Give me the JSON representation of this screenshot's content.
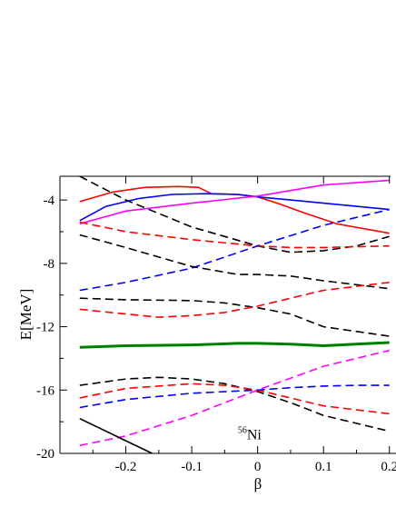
{
  "chart_data": {
    "type": "line",
    "title": "",
    "xlabel": "β",
    "ylabel": "E[MeV]",
    "xlim": [
      -0.3,
      0.21
    ],
    "ylim": [
      -20,
      -2.5
    ],
    "xticks": [
      -0.2,
      -0.1,
      0,
      0.1,
      0.2
    ],
    "xtick_labels": [
      "-0.2",
      "-0.1",
      "0",
      "0.1",
      "0.2"
    ],
    "yticks": [
      -20,
      -16,
      -12,
      -8,
      -4
    ],
    "ytick_labels": [
      "-20",
      "-16",
      "-12",
      "-8",
      "-4"
    ],
    "grid": false,
    "legend": "none",
    "annotation": {
      "superscript": "56",
      "text": "Ni",
      "x": -0.03,
      "y": -19.1
    },
    "series": [
      {
        "color": "#ff0000",
        "style": "solid",
        "width": 1.6,
        "x": [
          -0.27,
          -0.22,
          -0.17,
          -0.12,
          -0.09,
          -0.07,
          -0.03,
          0,
          0.03,
          0.07,
          0.12,
          0.2
        ],
        "y": [
          -4.1,
          -3.5,
          -3.2,
          -3.15,
          -3.2,
          -3.6,
          -3.65,
          -3.8,
          -4.2,
          -4.8,
          -5.5,
          -6.1
        ]
      },
      {
        "color": "#0000ff",
        "style": "solid",
        "width": 1.6,
        "x": [
          -0.27,
          -0.23,
          -0.18,
          -0.13,
          -0.08,
          -0.03,
          0,
          0.05,
          0.1,
          0.15,
          0.2
        ],
        "y": [
          -5.3,
          -4.4,
          -3.9,
          -3.65,
          -3.6,
          -3.65,
          -3.8,
          -4.0,
          -4.2,
          -4.4,
          -4.6
        ]
      },
      {
        "color": "#ff00ff",
        "style": "solid",
        "width": 1.6,
        "x": [
          -0.27,
          -0.2,
          -0.1,
          0,
          0.1,
          0.2
        ],
        "y": [
          -5.5,
          -4.7,
          -4.2,
          -3.75,
          -3.05,
          -2.75
        ]
      },
      {
        "color": "#000000",
        "style": "dashed",
        "width": 1.6,
        "x": [
          -0.27,
          -0.2,
          -0.1,
          0,
          0.05,
          0.1,
          0.15,
          0.2
        ],
        "y": [
          -2.5,
          -4.0,
          -5.7,
          -6.9,
          -7.3,
          -7.2,
          -6.9,
          -6.3
        ]
      },
      {
        "color": "#ff0000",
        "style": "dashed",
        "width": 1.6,
        "x": [
          -0.27,
          -0.2,
          -0.1,
          0,
          0.05,
          0.1,
          0.2
        ],
        "y": [
          -5.4,
          -6.0,
          -6.5,
          -6.9,
          -7.0,
          -7.0,
          -6.9
        ]
      },
      {
        "color": "#0000ff",
        "style": "dashed",
        "width": 1.6,
        "x": [
          -0.27,
          -0.2,
          -0.1,
          0,
          0.1,
          0.2
        ],
        "y": [
          -9.7,
          -9.2,
          -8.3,
          -6.9,
          -5.6,
          -4.6
        ]
      },
      {
        "color": "#000000",
        "style": "dashed",
        "width": 1.6,
        "x": [
          -0.27,
          -0.2,
          -0.1,
          -0.03,
          0,
          0.05,
          0.1,
          0.2
        ],
        "y": [
          -6.2,
          -7.0,
          -8.2,
          -8.7,
          -8.7,
          -8.8,
          -9.1,
          -9.6
        ]
      },
      {
        "color": "#000000",
        "style": "dashed",
        "width": 1.6,
        "x": [
          -0.27,
          -0.2,
          -0.1,
          -0.05,
          0,
          0.05,
          0.1,
          0.2
        ],
        "y": [
          -10.2,
          -10.3,
          -10.35,
          -10.5,
          -10.8,
          -11.2,
          -12.0,
          -12.6
        ]
      },
      {
        "color": "#ff0000",
        "style": "dashed",
        "width": 1.6,
        "x": [
          -0.27,
          -0.2,
          -0.15,
          -0.1,
          -0.05,
          0,
          0.05,
          0.1,
          0.2
        ],
        "y": [
          -10.9,
          -11.2,
          -11.4,
          -11.3,
          -11.1,
          -10.7,
          -10.2,
          -9.7,
          -9.2
        ]
      },
      {
        "color": "#008000",
        "style": "solid",
        "width": 3.0,
        "x": [
          -0.27,
          -0.2,
          -0.1,
          -0.03,
          0,
          0.05,
          0.1,
          0.2
        ],
        "y": [
          -13.3,
          -13.2,
          -13.15,
          -13.05,
          -13.05,
          -13.1,
          -13.2,
          -13.0
        ]
      },
      {
        "color": "#000000",
        "style": "dashed",
        "width": 1.6,
        "x": [
          -0.27,
          -0.2,
          -0.15,
          -0.1,
          -0.05,
          0,
          0.05,
          0.1,
          0.2
        ],
        "y": [
          -15.7,
          -15.3,
          -15.2,
          -15.3,
          -15.6,
          -16.1,
          -16.8,
          -17.6,
          -18.6
        ]
      },
      {
        "color": "#ff0000",
        "style": "dashed",
        "width": 1.6,
        "x": [
          -0.27,
          -0.2,
          -0.1,
          -0.05,
          0,
          0.05,
          0.1,
          0.2
        ],
        "y": [
          -16.5,
          -15.9,
          -15.6,
          -15.7,
          -16.0,
          -16.5,
          -17.0,
          -17.5
        ]
      },
      {
        "color": "#0000ff",
        "style": "dashed",
        "width": 1.6,
        "x": [
          -0.27,
          -0.2,
          -0.1,
          0,
          0.05,
          0.1,
          0.15,
          0.2
        ],
        "y": [
          -17.1,
          -16.6,
          -16.2,
          -16.0,
          -15.85,
          -15.75,
          -15.7,
          -15.7
        ]
      },
      {
        "color": "#ff00ff",
        "style": "dashed",
        "width": 1.6,
        "x": [
          -0.27,
          -0.2,
          -0.1,
          0,
          0.1,
          0.2
        ],
        "y": [
          -19.5,
          -18.9,
          -17.6,
          -16.0,
          -14.5,
          -13.5
        ]
      },
      {
        "color": "#000000",
        "style": "solid",
        "width": 1.6,
        "x": [
          -0.27,
          -0.2,
          -0.16
        ],
        "y": [
          -17.8,
          -19.2,
          -20.0
        ]
      }
    ]
  }
}
